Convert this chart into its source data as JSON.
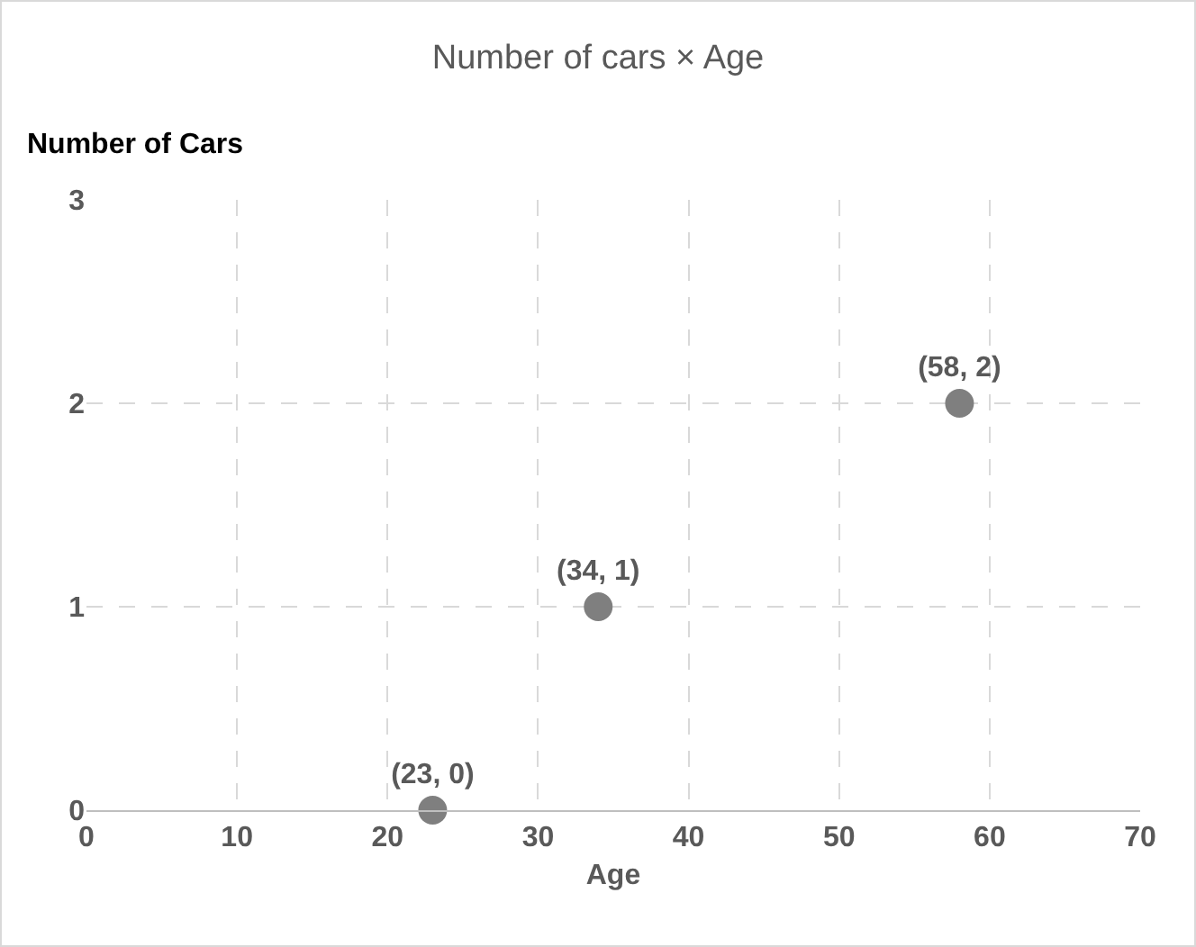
{
  "chart_data": {
    "type": "scatter",
    "title": "Number of cars × Age",
    "xlabel": "Age",
    "ylabel": "Number of Cars",
    "x": [
      23,
      34,
      58
    ],
    "values": [
      0,
      1,
      2
    ],
    "value_labels": [
      "(23, 0)",
      "(34, 1)",
      "(58, 2)"
    ],
    "color": "#7f7f7f",
    "marker": "circle",
    "xlim": [
      0,
      70
    ],
    "xticks": [
      0,
      10,
      20,
      30,
      40,
      50,
      60,
      70
    ],
    "ylim": [
      0,
      3
    ],
    "yticks": [
      0,
      1,
      2,
      3
    ],
    "grid": true
  }
}
